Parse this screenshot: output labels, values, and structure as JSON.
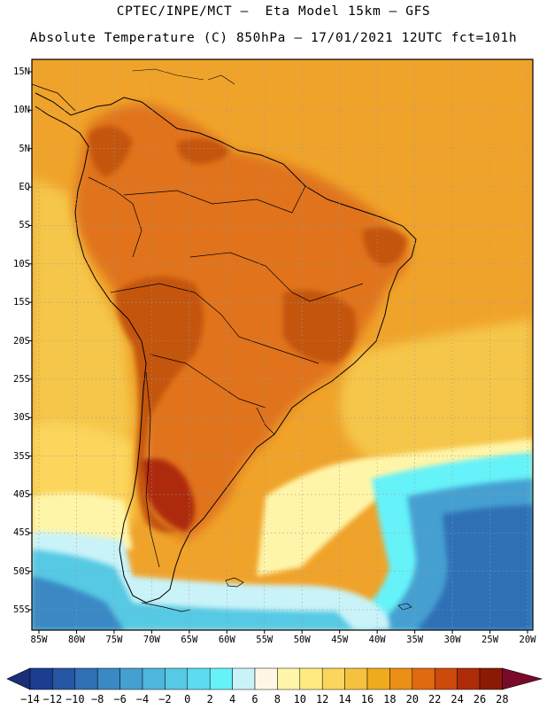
{
  "header": {
    "line1": "CPTEC/INPE/MCT –  Eta Model 15km – GFS",
    "line2": "Absolute Temperature (C) 850hPa – 17/01/2021 12UTC fct=101h"
  },
  "latitude_labels": [
    "15N",
    "10N",
    "5N",
    "EQ",
    "5S",
    "10S",
    "15S",
    "20S",
    "25S",
    "30S",
    "35S",
    "40S",
    "45S",
    "50S",
    "55S"
  ],
  "longitude_labels": [
    "85W",
    "80W",
    "75W",
    "70W",
    "65W",
    "60W",
    "55W",
    "50W",
    "45W",
    "40W",
    "35W",
    "30W",
    "25W",
    "20W"
  ],
  "colorbar": {
    "labels": [
      "-14",
      "-12",
      "-10",
      "-8",
      "-6",
      "-4",
      "-2",
      "0",
      "2",
      "4",
      "6",
      "8",
      "10",
      "12",
      "14",
      "16",
      "18",
      "20",
      "22",
      "24",
      "26",
      "28"
    ],
    "colors": [
      "#1b3e91",
      "#2756a4",
      "#2f6fb6",
      "#3a88c4",
      "#45a0d1",
      "#4eb6dc",
      "#56c9e4",
      "#5cdcee",
      "#66f2f9",
      "#c9f3f8",
      "#fff7e6",
      "#fff5a8",
      "#ffea82",
      "#fbd55c",
      "#f4c23e",
      "#f0ab1c",
      "#eb8f17",
      "#e06a10",
      "#cc4a0b",
      "#ad2c07",
      "#8b1a05"
    ],
    "under_color": "#1a2f7a",
    "over_color": "#7a0a2a"
  },
  "palette": {
    "land_hot": "#c4550c",
    "land_warm": "#e0731a",
    "ocean_warm": "#f0a32a",
    "ocean_mild": "#f5c64a",
    "pale": "#fff5a8",
    "cold_1": "#c9f3f8",
    "cold_2": "#56c9e4",
    "cold_3": "#2f6fb6"
  }
}
